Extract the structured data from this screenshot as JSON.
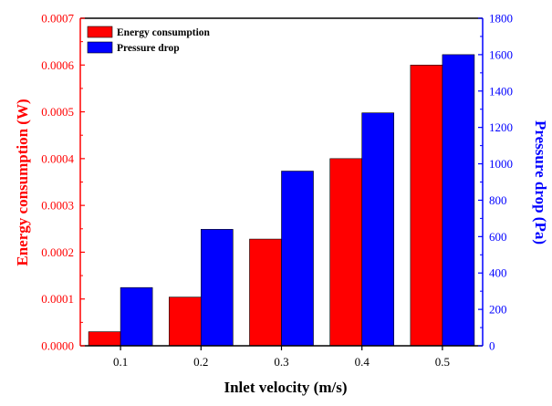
{
  "chart_data": {
    "type": "bar",
    "title": "",
    "xlabel": "Inlet velocity (m/s)",
    "categories": [
      "0.1",
      "0.2",
      "0.3",
      "0.4",
      "0.5"
    ],
    "series": [
      {
        "name": "Energy consumption",
        "axis": "left",
        "color": "#ff0000",
        "values": [
          3e-05,
          0.000104,
          0.000228,
          0.0004,
          0.0006
        ]
      },
      {
        "name": "Pressure drop",
        "axis": "right",
        "color": "#0000ff",
        "values": [
          320,
          640,
          960,
          1280,
          1600
        ]
      }
    ],
    "y_left": {
      "label": "Energy consumption (W)",
      "color": "#ff0000",
      "ylim": [
        0,
        0.0007
      ],
      "ticks": [
        "0.0000",
        "0.0001",
        "0.0002",
        "0.0003",
        "0.0004",
        "0.0005",
        "0.0006",
        "0.0007"
      ]
    },
    "y_right": {
      "label": "Pressure drop (Pa)",
      "color": "#0000ff",
      "ylim": [
        0,
        1800
      ],
      "ticks": [
        "0",
        "200",
        "400",
        "600",
        "800",
        "1000",
        "1200",
        "1400",
        "1600",
        "1800"
      ]
    },
    "legend": {
      "position": "top-left"
    },
    "grid": false
  }
}
